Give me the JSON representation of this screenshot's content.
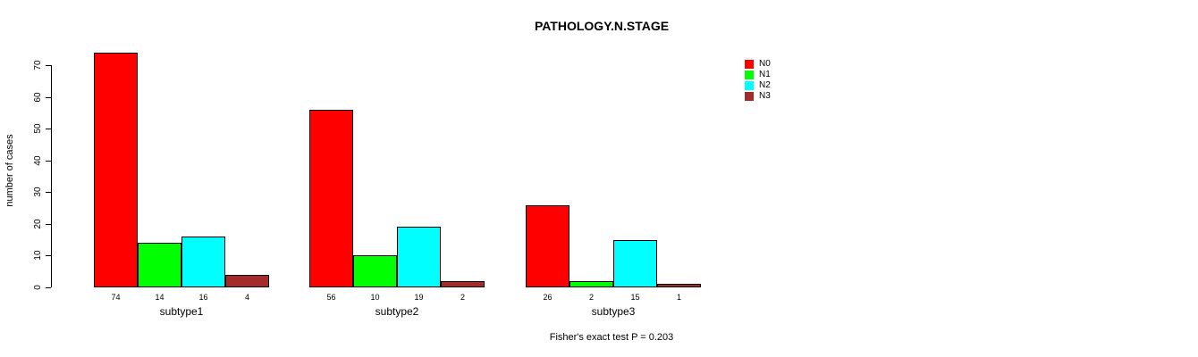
{
  "chart_data": {
    "type": "bar",
    "title": "PATHOLOGY.N.STAGE",
    "ylabel": "number of cases",
    "xlabel": "",
    "ylim": [
      0,
      70
    ],
    "yticks": [
      0,
      10,
      20,
      30,
      40,
      50,
      60,
      70
    ],
    "categories": [
      "subtype1",
      "subtype2",
      "subtype3"
    ],
    "series": [
      {
        "name": "N0",
        "color": "#FF0000",
        "values": [
          74,
          56,
          26
        ]
      },
      {
        "name": "N1",
        "color": "#00FF00",
        "values": [
          14,
          10,
          2
        ]
      },
      {
        "name": "N2",
        "color": "#00FFFF",
        "values": [
          16,
          19,
          15
        ]
      },
      {
        "name": "N3",
        "color": "#A52A2A",
        "values": [
          4,
          2,
          1
        ]
      }
    ],
    "bar_value_labels_shown": true,
    "legend_position": "right",
    "grid": false,
    "annotation": "Fisher's exact test P = 0.203"
  }
}
